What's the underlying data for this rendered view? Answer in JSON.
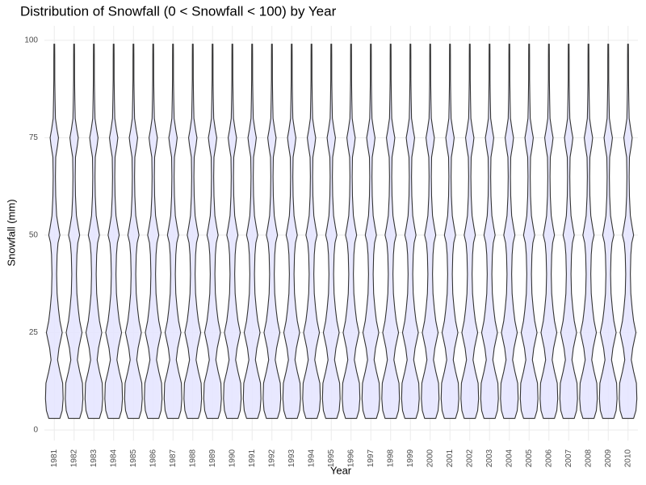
{
  "chart_data": {
    "type": "violin",
    "title": "Distribution of Snowfall (0 < Snowfall < 100) by Year",
    "x_label": "Year",
    "y_label": "Snowfall (mm)",
    "categories": [
      "1981",
      "1982",
      "1983",
      "1984",
      "1985",
      "1986",
      "1987",
      "1988",
      "1989",
      "1990",
      "1991",
      "1992",
      "1993",
      "1994",
      "1995",
      "1996",
      "1997",
      "1998",
      "1999",
      "2000",
      "2001",
      "2002",
      "2003",
      "2004",
      "2005",
      "2006",
      "2007",
      "2008",
      "2009",
      "2010"
    ],
    "density": {
      "y": [
        3,
        5,
        8,
        12,
        15,
        18,
        21,
        25,
        28,
        31,
        35,
        40,
        45,
        48,
        50,
        52,
        55,
        60,
        65,
        70,
        73,
        75,
        77,
        80,
        85,
        90,
        95,
        99
      ],
      "width": [
        0.6,
        0.85,
        0.95,
        0.9,
        0.6,
        0.35,
        0.5,
        0.85,
        0.6,
        0.45,
        0.3,
        0.25,
        0.3,
        0.4,
        0.6,
        0.45,
        0.25,
        0.15,
        0.12,
        0.15,
        0.35,
        0.45,
        0.3,
        0.12,
        0.08,
        0.05,
        0.05,
        0.04
      ]
    },
    "color": "#e6e6ff",
    "ylim": [
      -2.7,
      103.7
    ],
    "yticks": [
      0,
      25,
      50,
      75,
      100
    ],
    "grid": true
  }
}
